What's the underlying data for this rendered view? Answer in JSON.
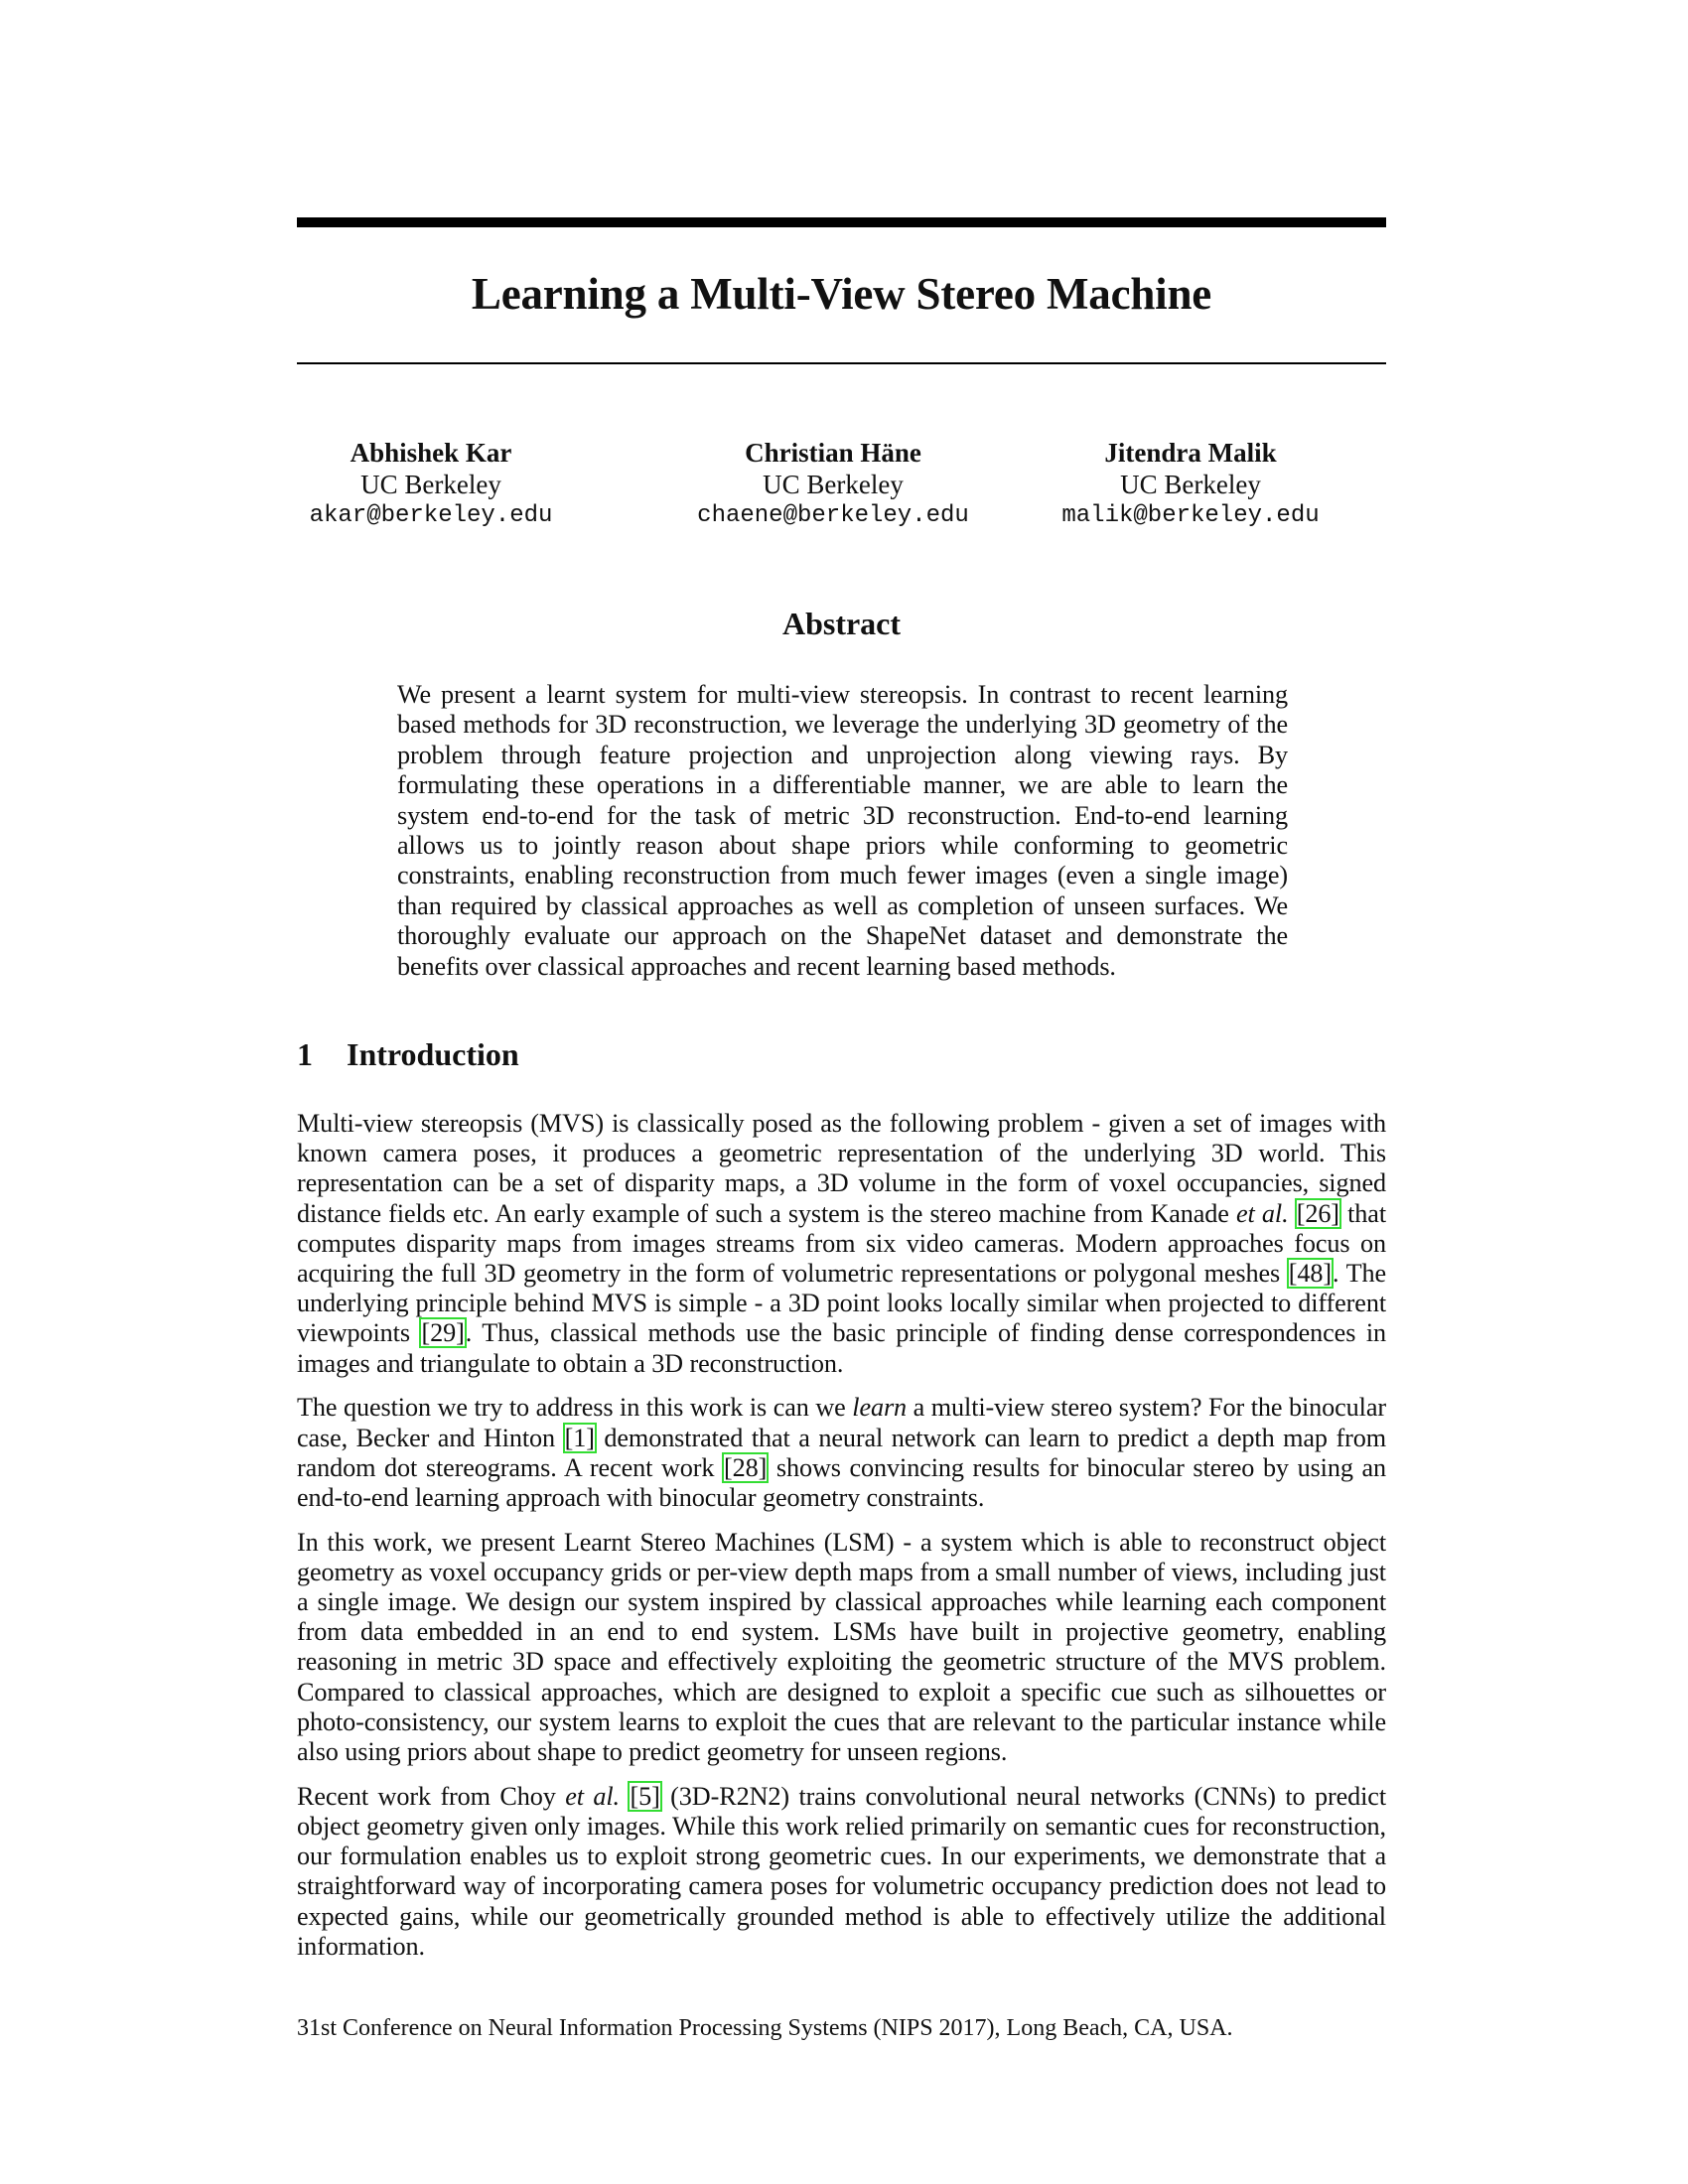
{
  "paper": {
    "title": "Learning a Multi-View Stereo Machine",
    "authors": [
      {
        "name": "Abhishek Kar",
        "affiliation": "UC Berkeley",
        "email": "akar@berkeley.edu"
      },
      {
        "name": "Christian Häne",
        "affiliation": "UC Berkeley",
        "email": "chaene@berkeley.edu"
      },
      {
        "name": "Jitendra Malik",
        "affiliation": "UC Berkeley",
        "email": "malik@berkeley.edu"
      }
    ],
    "abstract_heading": "Abstract",
    "abstract": "We present a learnt system for multi-view stereopsis. In contrast to recent learning based methods for 3D reconstruction, we leverage the underlying 3D geometry of the problem through feature projection and unprojection along viewing rays. By formulating these operations in a differentiable manner, we are able to learn the system end-to-end for the task of metric 3D reconstruction. End-to-end learning allows us to jointly reason about shape priors while conforming to geometric constraints, enabling reconstruction from much fewer images (even a single image) than required by classical approaches as well as completion of unseen surfaces. We thoroughly evaluate our approach on the ShapeNet dataset and demonstrate the benefits over classical approaches and recent learning based methods.",
    "section1": {
      "number": "1",
      "title": "Introduction",
      "p1": {
        "a": "Multi-view stereopsis (MVS) is classically posed as the following problem - given a set of images with known camera poses, it produces a geometric representation of the underlying 3D world. This representation can be a set of disparity maps, a 3D volume in the form of voxel occupancies, signed distance fields etc. An early example of such a system is the stereo machine from Kanade ",
        "etal": "et al.",
        "cite1": "[26]",
        "b": " that computes disparity maps from images streams from six video cameras. Modern approaches focus on acquiring the full 3D geometry in the form of volumetric representations or polygonal meshes ",
        "cite2": "[48]",
        "c": ". The underlying principle behind MVS is simple - a 3D point looks locally similar when projected to different viewpoints ",
        "cite3": "[29]",
        "d": ". Thus, classical methods use the basic principle of finding dense correspondences in images and triangulate to obtain a 3D reconstruction."
      },
      "p2": {
        "a": "The question we try to address in this work is can we ",
        "learn": "learn",
        "b": " a multi-view stereo system? For the binocular case, Becker and Hinton ",
        "cite1": "[1]",
        "c": " demonstrated that a neural network can learn to predict a depth map from random dot stereograms. A recent work ",
        "cite2": "[28]",
        "d": " shows convincing results for binocular stereo by using an end-to-end learning approach with binocular geometry constraints."
      },
      "p3": "In this work, we present Learnt Stereo Machines (LSM) - a system which is able to reconstruct object geometry as voxel occupancy grids or per-view depth maps from a small number of views, including just a single image. We design our system inspired by classical approaches while learning each component from data embedded in an end to end system. LSMs have built in projective geometry, enabling reasoning in metric 3D space and effectively exploiting the geometric structure of the MVS problem. Compared to classical approaches, which are designed to exploit a specific cue such as silhouettes or photo-consistency, our system learns to exploit the cues that are relevant to the particular instance while also using priors about shape to predict geometry for unseen regions.",
      "p4": {
        "a": "Recent work from Choy ",
        "etal": "et al.",
        "cite1": "[5]",
        "b": " (3D-R2N2) trains convolutional neural networks (CNNs) to predict object geometry given only images. While this work relied primarily on semantic cues for reconstruction, our formulation enables us to exploit strong geometric cues. In our experiments, we demonstrate that a straightforward way of incorporating camera poses for volumetric occupancy prediction does not lead to expected gains, while our geometrically grounded method is able to effectively utilize the additional information."
      }
    },
    "footnote": "31st Conference on Neural Information Processing Systems (NIPS 2017), Long Beach, CA, USA."
  },
  "colors": {
    "text": "#111111",
    "rule": "#000000",
    "citation_box": "#33dd33"
  }
}
